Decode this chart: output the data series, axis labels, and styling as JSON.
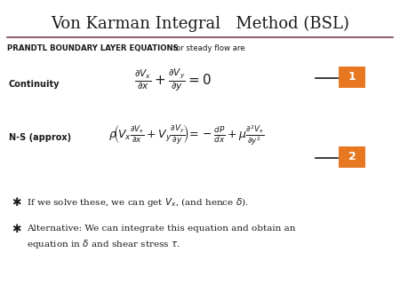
{
  "title": "Von Karman Integral   Method (BSL)",
  "background_color": "#ffffff",
  "header_bold": "PRANDTL BOUNDARY LAYER EQUATIONS",
  "header_normal": " for steady flow are",
  "continuity_label": "Continuity",
  "ns_label": "N-S (approx)",
  "bullet1_text": "If we solve these, we can get $V_x$, (and hence $\\delta$).",
  "bullet2_line1": "Alternative: We can integrate this equation and obtain an",
  "bullet2_line2": "equation in $\\delta$ and shear stress $\\tau$.",
  "box1_color": "#E87722",
  "box2_color": "#E87722",
  "box1_label": "1",
  "box2_label": "2",
  "line_color": "#7B3F5E",
  "figsize": [
    4.5,
    3.38
  ],
  "dpi": 100
}
